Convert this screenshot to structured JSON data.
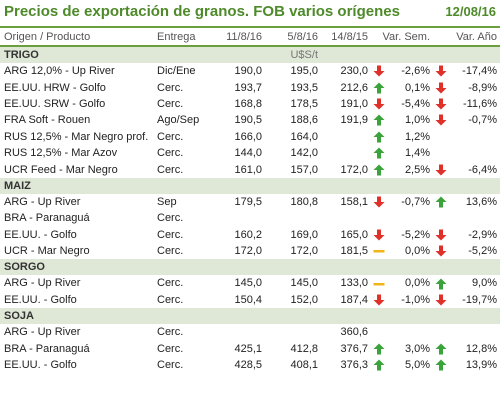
{
  "header": {
    "title": "Precios de exportación de granos. FOB varios orígenes",
    "date": "12/08/16"
  },
  "columns": {
    "origen": "Origen / Producto",
    "entrega": "Entrega",
    "d1": "11/8/16",
    "d2": "5/8/16",
    "d3": "14/8/15",
    "var_sem": "Var. Sem.",
    "var_anio": "Var. Año"
  },
  "unit": "U$S/t",
  "colors": {
    "accent": "#4e8a2a",
    "up": "#3aa33a",
    "down": "#e0302a",
    "flat": "#f0b418",
    "section_bg": "#dfe7d6"
  },
  "sections": [
    {
      "name": "TRIGO",
      "rows": [
        {
          "product": "ARG 12,0% - Up River",
          "delivery": "Dic/Ene",
          "d1": "190,0",
          "d2": "195,0",
          "d3": "230,0",
          "sem_icon": "down",
          "sem": "-2,6%",
          "anio_icon": "down",
          "anio": "-17,4%"
        },
        {
          "product": "EE.UU. HRW - Golfo",
          "delivery": "Cerc.",
          "d1": "193,7",
          "d2": "193,5",
          "d3": "212,6",
          "sem_icon": "up",
          "sem": "0,1%",
          "anio_icon": "down",
          "anio": "-8,9%"
        },
        {
          "product": "EE.UU. SRW - Golfo",
          "delivery": "Cerc.",
          "d1": "168,8",
          "d2": "178,5",
          "d3": "191,0",
          "sem_icon": "down",
          "sem": "-5,4%",
          "anio_icon": "down",
          "anio": "-11,6%"
        },
        {
          "product": "FRA Soft - Rouen",
          "delivery": "Ago/Sep",
          "d1": "190,5",
          "d2": "188,6",
          "d3": "191,9",
          "sem_icon": "up",
          "sem": "1,0%",
          "anio_icon": "down",
          "anio": "-0,7%"
        },
        {
          "product": "RUS 12,5% - Mar Negro prof.",
          "delivery": "Cerc.",
          "d1": "166,0",
          "d2": "164,0",
          "d3": "",
          "sem_icon": "up",
          "sem": "1,2%",
          "anio_icon": "",
          "anio": ""
        },
        {
          "product": "RUS 12,5% - Mar Azov",
          "delivery": "Cerc.",
          "d1": "144,0",
          "d2": "142,0",
          "d3": "",
          "sem_icon": "up",
          "sem": "1,4%",
          "anio_icon": "",
          "anio": ""
        },
        {
          "product": "UCR Feed - Mar Negro",
          "delivery": "Cerc.",
          "d1": "161,0",
          "d2": "157,0",
          "d3": "172,0",
          "sem_icon": "up",
          "sem": "2,5%",
          "anio_icon": "down",
          "anio": "-6,4%"
        }
      ]
    },
    {
      "name": "MAIZ",
      "rows": [
        {
          "product": "ARG - Up River",
          "delivery": "Sep",
          "d1": "179,5",
          "d2": "180,8",
          "d3": "158,1",
          "sem_icon": "down",
          "sem": "-0,7%",
          "anio_icon": "up",
          "anio": "13,6%"
        },
        {
          "product": "BRA - Paranaguá",
          "delivery": "Cerc.",
          "d1": "",
          "d2": "",
          "d3": "",
          "sem_icon": "",
          "sem": "",
          "anio_icon": "",
          "anio": ""
        },
        {
          "product": "EE.UU. - Golfo",
          "delivery": "Cerc.",
          "d1": "160,2",
          "d2": "169,0",
          "d3": "165,0",
          "sem_icon": "down",
          "sem": "-5,2%",
          "anio_icon": "down",
          "anio": "-2,9%"
        },
        {
          "product": "UCR - Mar Negro",
          "delivery": "Cerc.",
          "d1": "172,0",
          "d2": "172,0",
          "d3": "181,5",
          "sem_icon": "flat",
          "sem": "0,0%",
          "anio_icon": "down",
          "anio": "-5,2%"
        }
      ]
    },
    {
      "name": "SORGO",
      "rows": [
        {
          "product": "ARG - Up River",
          "delivery": "Cerc.",
          "d1": "145,0",
          "d2": "145,0",
          "d3": "133,0",
          "sem_icon": "flat",
          "sem": "0,0%",
          "anio_icon": "up",
          "anio": "9,0%"
        },
        {
          "product": "EE.UU. - Golfo",
          "delivery": "Cerc.",
          "d1": "150,4",
          "d2": "152,0",
          "d3": "187,4",
          "sem_icon": "down",
          "sem": "-1,0%",
          "anio_icon": "down",
          "anio": "-19,7%"
        }
      ]
    },
    {
      "name": "SOJA",
      "rows": [
        {
          "product": "ARG - Up River",
          "delivery": "Cerc.",
          "d1": "",
          "d2": "",
          "d3": "360,6",
          "sem_icon": "",
          "sem": "",
          "anio_icon": "",
          "anio": ""
        },
        {
          "product": "BRA - Paranaguá",
          "delivery": "Cerc.",
          "d1": "425,1",
          "d2": "412,8",
          "d3": "376,7",
          "sem_icon": "up",
          "sem": "3,0%",
          "anio_icon": "up",
          "anio": "12,8%"
        },
        {
          "product": "EE.UU. - Golfo",
          "delivery": "Cerc.",
          "d1": "428,5",
          "d2": "408,1",
          "d3": "376,3",
          "sem_icon": "up",
          "sem": "5,0%",
          "anio_icon": "up",
          "anio": "13,9%"
        }
      ]
    }
  ]
}
